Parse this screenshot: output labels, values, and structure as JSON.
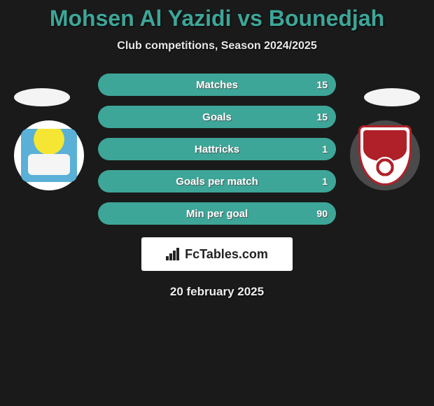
{
  "title": {
    "text": "Mohsen Al Yazidi vs Bounedjah",
    "color": "#3da698",
    "fontsize": 32
  },
  "subtitle": {
    "text": "Club competitions, Season 2024/2025",
    "fontsize": 16
  },
  "flags": {
    "left_color": "#f4f4f4",
    "right_color": "#f4f4f4"
  },
  "badges": {
    "left_bg": "#ffffff",
    "right_bg": "#4a4a4a"
  },
  "stats": {
    "border_color": "#3da698",
    "fill_color": "#3da698",
    "rows": [
      {
        "label": "Matches",
        "left": "",
        "right": "15",
        "right_pct": 100
      },
      {
        "label": "Goals",
        "left": "",
        "right": "15",
        "right_pct": 100
      },
      {
        "label": "Hattricks",
        "left": "",
        "right": "1",
        "right_pct": 100
      },
      {
        "label": "Goals per match",
        "left": "",
        "right": "1",
        "right_pct": 100
      },
      {
        "label": "Min per goal",
        "left": "",
        "right": "90",
        "right_pct": 100
      }
    ]
  },
  "brand": {
    "text": "FcTables.com",
    "bg": "#ffffff"
  },
  "date": {
    "text": "20 february 2025"
  }
}
